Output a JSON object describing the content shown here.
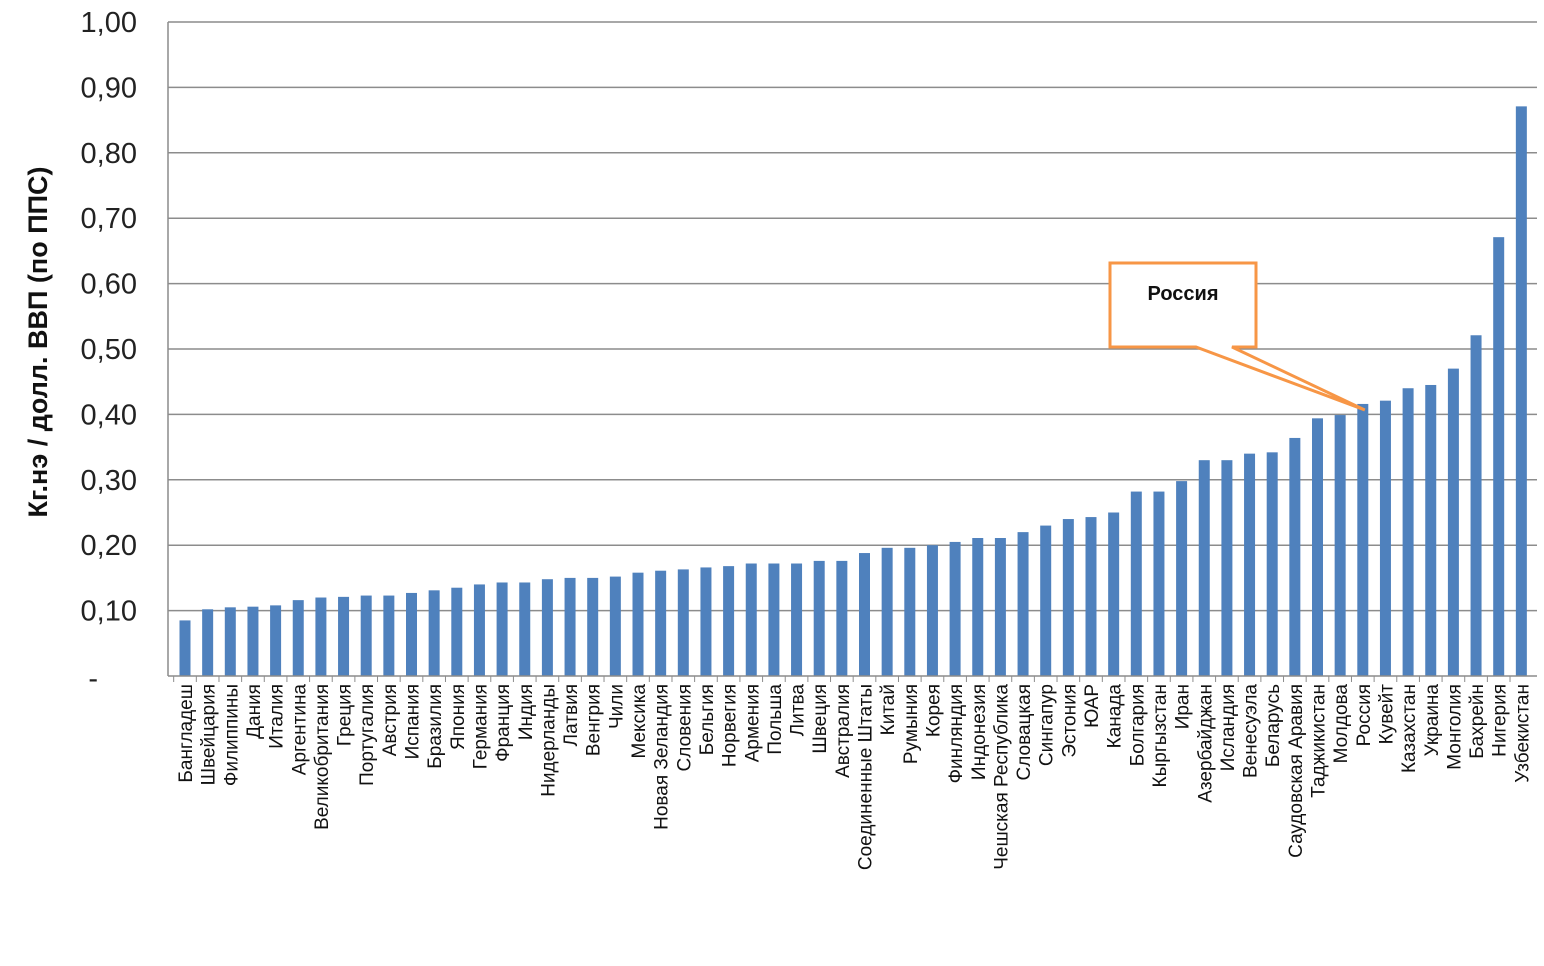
{
  "chart_data": {
    "type": "bar",
    "ylabel": "Кг.нэ / долл. ВВП (по ППС)",
    "xlabel": "",
    "ylim": [
      0,
      1.0
    ],
    "yticks": [
      {
        "value": 0.0,
        "label": "-"
      },
      {
        "value": 0.1,
        "label": "0,10"
      },
      {
        "value": 0.2,
        "label": "0,20"
      },
      {
        "value": 0.3,
        "label": "0,30"
      },
      {
        "value": 0.4,
        "label": "0,40"
      },
      {
        "value": 0.5,
        "label": "0,50"
      },
      {
        "value": 0.6,
        "label": "0,60"
      },
      {
        "value": 0.7,
        "label": "0,70"
      },
      {
        "value": 0.8,
        "label": "0,80"
      },
      {
        "value": 0.9,
        "label": "0,90"
      },
      {
        "value": 1.0,
        "label": "1,00"
      }
    ],
    "grid": true,
    "bar_color": "#4F81BD",
    "categories": [
      "Бангладеш",
      "Швейцария",
      "Филиппины",
      "Дания",
      "Италия",
      "Аргентина",
      "Великобритания",
      "Греция",
      "Португалия",
      "Австрия",
      "Испания",
      "Бразилия",
      "Япония",
      "Германия",
      "Франция",
      "Индия",
      "Нидерланды",
      "Латвия",
      "Венгрия",
      "Чили",
      "Мексика",
      "Новая Зеландия",
      "Словения",
      "Бельгия",
      "Норвегия",
      "Армения",
      "Польша",
      "Литва",
      "Швеция",
      "Австралия",
      "Соединенные Штаты",
      "Китай",
      "Румыния",
      "Корея",
      "Финляндия",
      "Индонезия",
      "Чешская Республика",
      "Словацкая",
      "Сингапур",
      "Эстония",
      "ЮАР",
      "Канада",
      "Болгария",
      "Кыргызстан",
      "Иран",
      "Азербайджан",
      "Исландия",
      "Венесуэла",
      "Беларусь",
      "Саудовская Аравия",
      "Таджикистан",
      "Молдова",
      "Россия",
      "Кувейт",
      "Казахстан",
      "Украина",
      "Монголия",
      "Бахрейн",
      "Нигерия",
      "Узбекистан"
    ],
    "values": [
      0.085,
      0.102,
      0.105,
      0.106,
      0.108,
      0.116,
      0.12,
      0.121,
      0.123,
      0.123,
      0.127,
      0.131,
      0.135,
      0.14,
      0.143,
      0.143,
      0.148,
      0.15,
      0.15,
      0.152,
      0.158,
      0.161,
      0.163,
      0.166,
      0.168,
      0.172,
      0.172,
      0.172,
      0.176,
      0.176,
      0.188,
      0.196,
      0.196,
      0.2,
      0.205,
      0.211,
      0.211,
      0.22,
      0.23,
      0.24,
      0.243,
      0.25,
      0.282,
      0.282,
      0.298,
      0.33,
      0.33,
      0.34,
      0.342,
      0.364,
      0.394,
      0.399,
      0.416,
      0.421,
      0.44,
      0.445,
      0.47,
      0.521,
      0.671,
      0.871
    ],
    "annotation": {
      "text": "Россия",
      "target_category": "Россия",
      "border_color": "#F79646"
    }
  }
}
